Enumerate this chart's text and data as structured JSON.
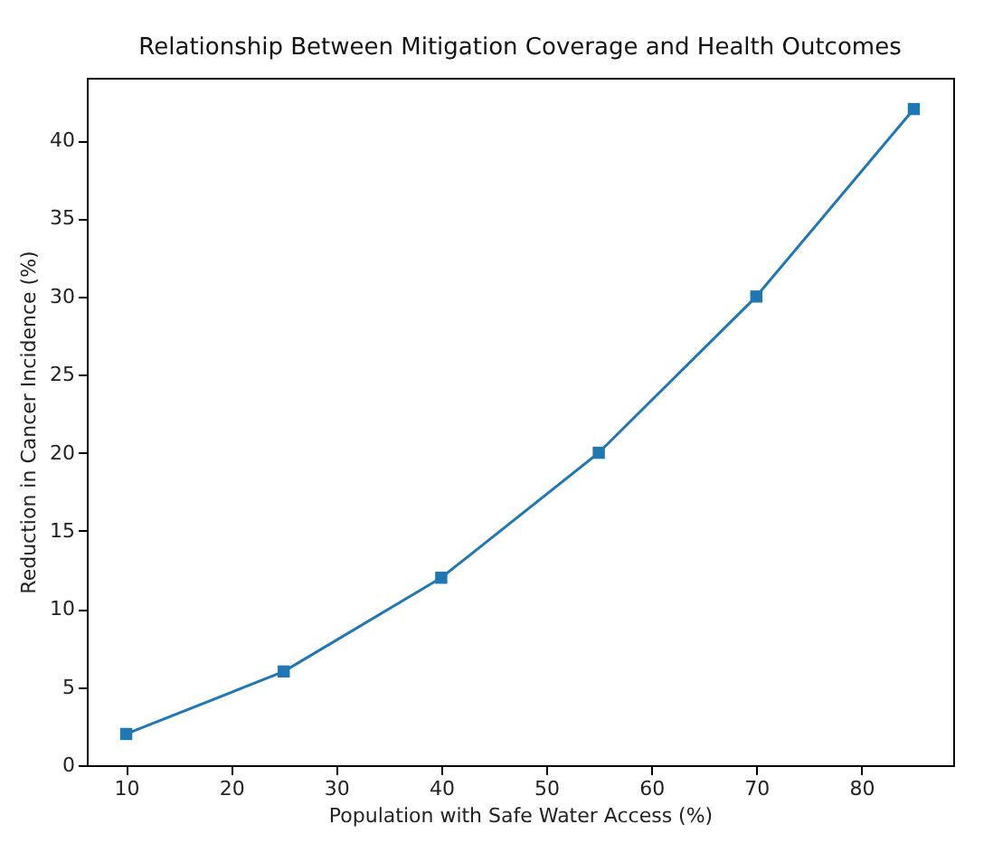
{
  "chart_data": {
    "type": "line",
    "title": "Relationship Between Mitigation Coverage and Health Outcomes",
    "xlabel": "Population with Safe Water Access (%)",
    "ylabel": "Reduction in Cancer Incidence (%)",
    "x": [
      10,
      25,
      40,
      55,
      70,
      85
    ],
    "series": [
      {
        "color": "#1f77b4",
        "values": [
          2,
          6,
          12,
          20,
          30,
          42
        ]
      }
    ],
    "xlim": [
      6.25,
      88.75
    ],
    "xticks": [
      10,
      20,
      30,
      40,
      50,
      60,
      70,
      80
    ],
    "ylim": [
      0,
      44
    ],
    "yticks": [
      0,
      5,
      10,
      15,
      20,
      25,
      30,
      35,
      40
    ],
    "grid": false,
    "marker": "square",
    "line_style": "solid"
  }
}
